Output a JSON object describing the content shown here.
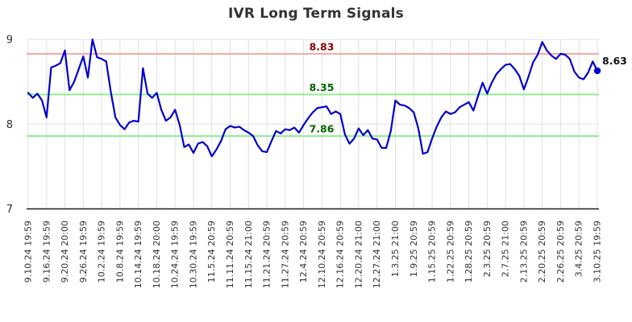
{
  "title": "IVR Long Term Signals",
  "colors": {
    "line": "#0000cc",
    "marker": "#0000cc",
    "upper_ref_line": "#f2a6a6",
    "lower_ref_line": "#90ee90",
    "upper_ref_label": "#8b0000",
    "lower_ref_label": "#006400",
    "grid": "#e0e0e0",
    "axis": "#1a1a1a",
    "tick_label": "#333333",
    "end_label": "#111111",
    "title": "#333333"
  },
  "chart_data": {
    "type": "line",
    "title": "IVR Long Term Signals",
    "ylim": [
      7,
      9
    ],
    "y_tick_labels": [
      "9",
      "8",
      "7"
    ],
    "y_ticks": [
      9,
      8,
      7
    ],
    "grid": true,
    "x_tick_labels": [
      "9.10.24 19:59",
      "9.16.24 19:59",
      "9.20.24 20:00",
      "9.26.24 19:59",
      "10.2.24 19:59",
      "10.8.24 19:59",
      "10.14.24 19:59",
      "10.18.24 20:00",
      "10.24.24 19:59",
      "10.30.24 19:59",
      "11.5.24 20:59",
      "11.11.24 20:59",
      "11.15.24 21:00",
      "11.21.24 20:59",
      "11.27.24 20:59",
      "12.4.24 20:59",
      "12.10.24 20:59",
      "12.16.24 20:59",
      "12.20.24 21:00",
      "12.27.24 21:00",
      "1.3.25 21:00",
      "1.9.25 20:59",
      "1.15.25 20:59",
      "1.22.25 20:59",
      "1.28.25 20:59",
      "2.3.25 20:59",
      "2.7.25 21:00",
      "2.13.25 20:59",
      "2.20.25 20:59",
      "2.26.25 20:59",
      "3.4.25 20:59",
      "3.10.25 19:59"
    ],
    "x_ticks_every": 4,
    "reference_lines": [
      {
        "value": 8.83,
        "label": "8.83",
        "line_color": "#f2a6a6",
        "label_color": "#8b0000"
      },
      {
        "value": 8.35,
        "label": "8.35",
        "line_color": "#90ee90",
        "label_color": "#006400"
      },
      {
        "value": 7.86,
        "label": "7.86",
        "line_color": "#90ee90",
        "label_color": "#006400"
      }
    ],
    "series": [
      {
        "name": "IVR",
        "color": "#0000cc",
        "values": [
          8.37,
          8.31,
          8.36,
          8.28,
          8.08,
          8.67,
          8.69,
          8.72,
          8.87,
          8.4,
          8.5,
          8.65,
          8.8,
          8.55,
          9.0,
          8.79,
          8.77,
          8.74,
          8.38,
          8.08,
          7.99,
          7.94,
          8.02,
          8.04,
          8.03,
          8.66,
          8.36,
          8.31,
          8.37,
          8.17,
          8.04,
          8.08,
          8.17,
          7.99,
          7.73,
          7.76,
          7.66,
          7.77,
          7.79,
          7.74,
          7.62,
          7.7,
          7.8,
          7.94,
          7.98,
          7.96,
          7.97,
          7.93,
          7.9,
          7.86,
          7.75,
          7.68,
          7.67,
          7.8,
          7.92,
          7.89,
          7.94,
          7.93,
          7.96,
          7.9,
          7.99,
          8.07,
          8.14,
          8.19,
          8.2,
          8.21,
          8.12,
          8.15,
          8.12,
          7.88,
          7.77,
          7.83,
          7.95,
          7.87,
          7.93,
          7.83,
          7.82,
          7.72,
          7.72,
          7.92,
          8.28,
          8.23,
          8.22,
          8.19,
          8.14,
          7.95,
          7.65,
          7.67,
          7.83,
          7.97,
          8.08,
          8.15,
          8.12,
          8.14,
          8.2,
          8.23,
          8.26,
          8.16,
          8.33,
          8.49,
          8.36,
          8.49,
          8.59,
          8.65,
          8.7,
          8.71,
          8.65,
          8.57,
          8.41,
          8.56,
          8.73,
          8.82,
          8.97,
          8.87,
          8.81,
          8.77,
          8.83,
          8.82,
          8.77,
          8.62,
          8.55,
          8.53,
          8.61,
          8.74,
          8.63
        ]
      }
    ],
    "last_value": 8.63,
    "last_value_label": "8.63",
    "legend_position": "none"
  }
}
